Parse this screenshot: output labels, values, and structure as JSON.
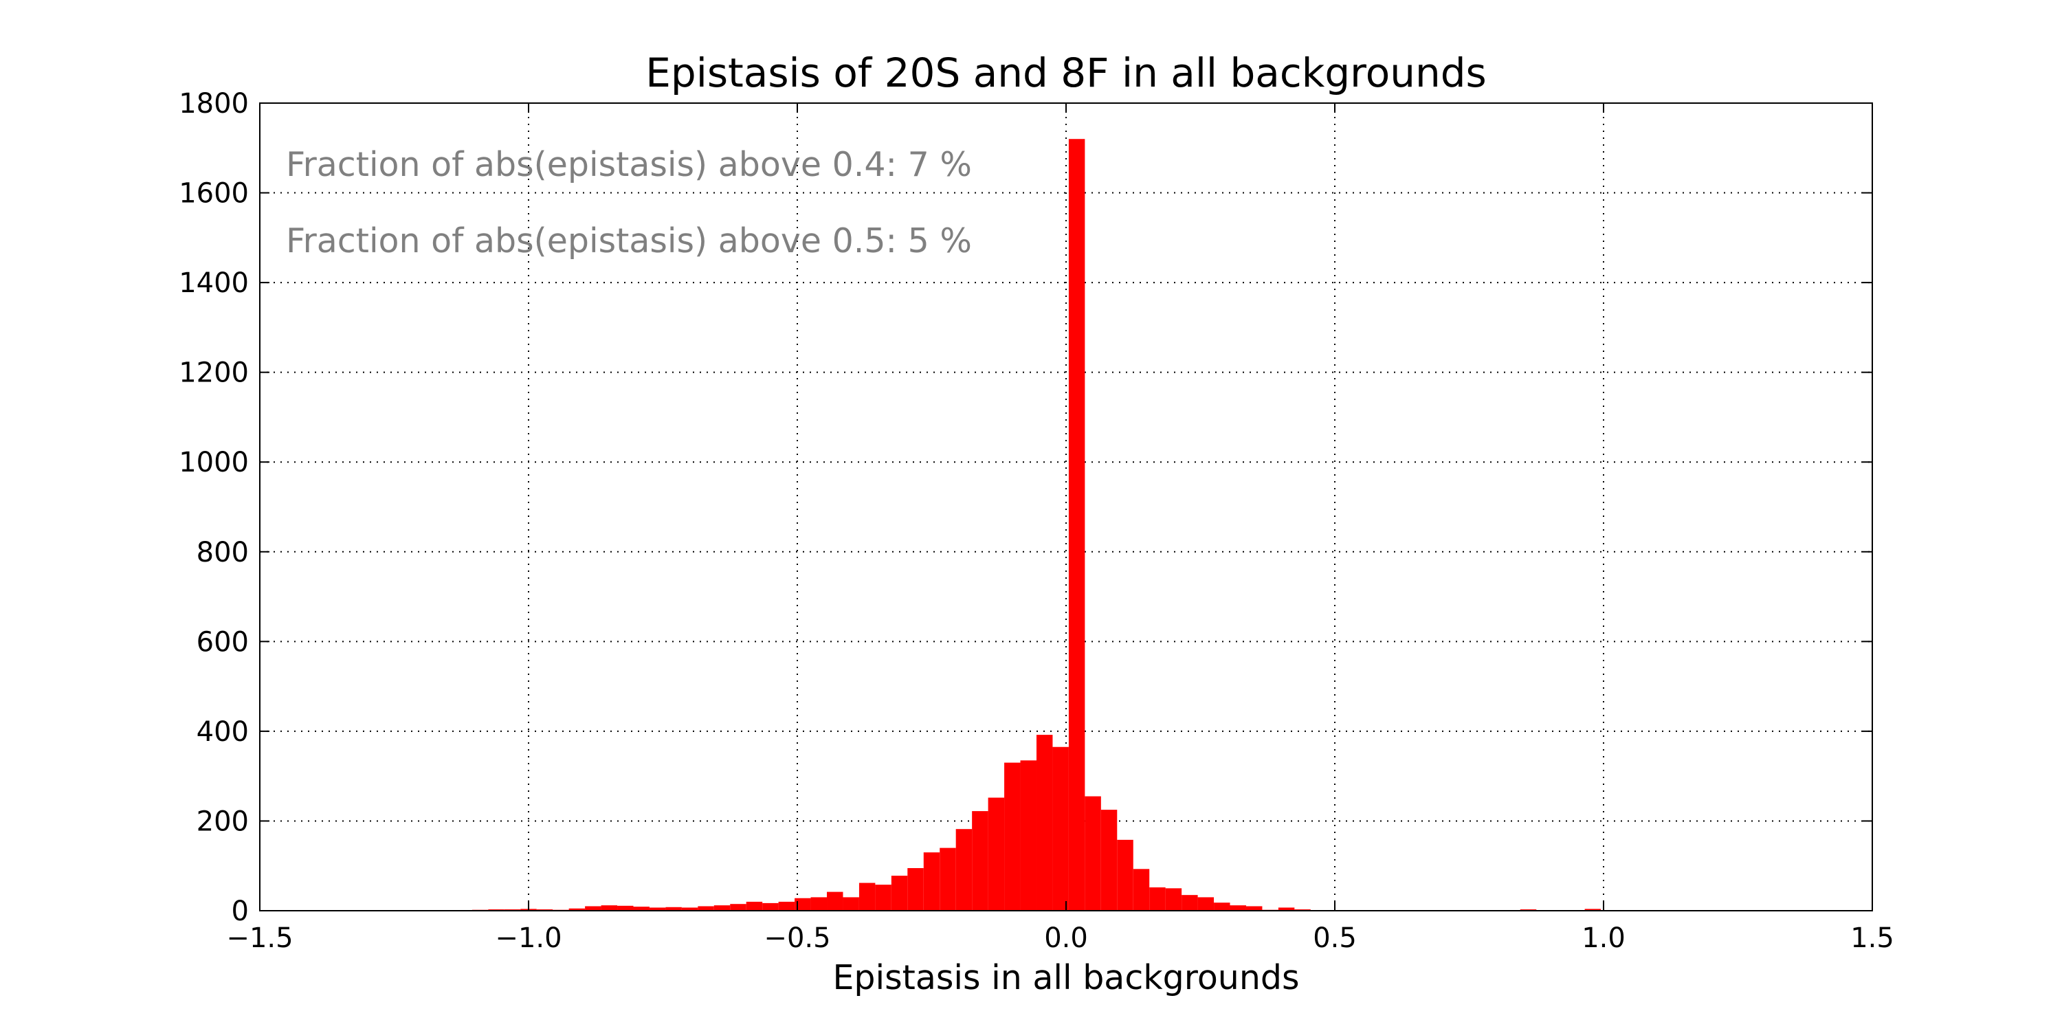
{
  "chart_data": {
    "type": "bar",
    "title": "Epistasis of 20S and 8F in all backgrounds",
    "xlabel": "Epistasis in all backgrounds",
    "ylabel": "",
    "xlim": [
      -1.5,
      1.5
    ],
    "ylim": [
      0,
      1800
    ],
    "xticks": [
      -1.5,
      -1.0,
      -0.5,
      0.0,
      0.5,
      1.0,
      1.5
    ],
    "xtick_labels": [
      "−1.5",
      "−1.0",
      "−0.5",
      "0.0",
      "0.5",
      "1.0",
      "1.5"
    ],
    "yticks": [
      0,
      200,
      400,
      600,
      800,
      1000,
      1200,
      1400,
      1600,
      1800
    ],
    "ytick_labels": [
      "0",
      "200",
      "400",
      "600",
      "800",
      "1000",
      "1200",
      "1400",
      "1600",
      "1800"
    ],
    "grid": true,
    "bar_color": "#ff0000",
    "annotation_color": "#808080",
    "annotations": [
      "Fraction of abs(epistasis) above 0.4: 7 %",
      "Fraction of abs(epistasis) above 0.5: 5 %"
    ],
    "bin_width": 0.03,
    "bins": [
      {
        "x": -1.09,
        "value": 2
      },
      {
        "x": -1.06,
        "value": 3
      },
      {
        "x": -1.03,
        "value": 3
      },
      {
        "x": -1.0,
        "value": 4
      },
      {
        "x": -0.97,
        "value": 3
      },
      {
        "x": -0.94,
        "value": 2
      },
      {
        "x": -0.91,
        "value": 5
      },
      {
        "x": -0.88,
        "value": 10
      },
      {
        "x": -0.85,
        "value": 12
      },
      {
        "x": -0.82,
        "value": 11
      },
      {
        "x": -0.79,
        "value": 9
      },
      {
        "x": -0.76,
        "value": 7
      },
      {
        "x": -0.73,
        "value": 8
      },
      {
        "x": -0.7,
        "value": 7
      },
      {
        "x": -0.67,
        "value": 10
      },
      {
        "x": -0.64,
        "value": 12
      },
      {
        "x": -0.61,
        "value": 15
      },
      {
        "x": -0.58,
        "value": 20
      },
      {
        "x": -0.55,
        "value": 17
      },
      {
        "x": -0.52,
        "value": 20
      },
      {
        "x": -0.49,
        "value": 28
      },
      {
        "x": -0.46,
        "value": 30
      },
      {
        "x": -0.43,
        "value": 42
      },
      {
        "x": -0.4,
        "value": 30
      },
      {
        "x": -0.37,
        "value": 62
      },
      {
        "x": -0.34,
        "value": 58
      },
      {
        "x": -0.31,
        "value": 78
      },
      {
        "x": -0.28,
        "value": 95
      },
      {
        "x": -0.25,
        "value": 130
      },
      {
        "x": -0.22,
        "value": 140
      },
      {
        "x": -0.19,
        "value": 182
      },
      {
        "x": -0.16,
        "value": 222
      },
      {
        "x": -0.13,
        "value": 252
      },
      {
        "x": -0.1,
        "value": 330
      },
      {
        "x": -0.07,
        "value": 335
      },
      {
        "x": -0.04,
        "value": 392
      },
      {
        "x": -0.01,
        "value": 365
      },
      {
        "x": 0.02,
        "value": 1720
      },
      {
        "x": 0.05,
        "value": 255
      },
      {
        "x": 0.08,
        "value": 225
      },
      {
        "x": 0.11,
        "value": 158
      },
      {
        "x": 0.14,
        "value": 93
      },
      {
        "x": 0.17,
        "value": 52
      },
      {
        "x": 0.2,
        "value": 50
      },
      {
        "x": 0.23,
        "value": 35
      },
      {
        "x": 0.26,
        "value": 30
      },
      {
        "x": 0.29,
        "value": 18
      },
      {
        "x": 0.32,
        "value": 12
      },
      {
        "x": 0.35,
        "value": 10
      },
      {
        "x": 0.38,
        "value": 2
      },
      {
        "x": 0.41,
        "value": 7
      },
      {
        "x": 0.44,
        "value": 3
      },
      {
        "x": 0.47,
        "value": 1
      },
      {
        "x": 0.86,
        "value": 3
      },
      {
        "x": 0.98,
        "value": 4
      }
    ]
  }
}
